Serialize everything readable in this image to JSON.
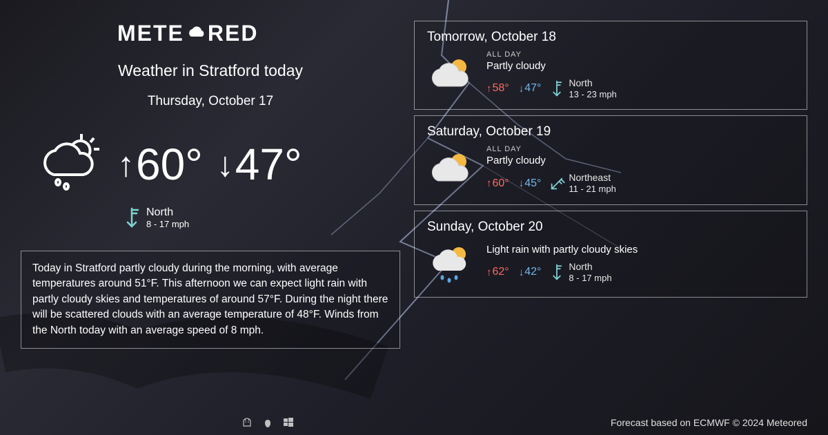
{
  "brand": {
    "name_a": "METE",
    "name_b": "RED"
  },
  "colors": {
    "text": "#ffffff",
    "hi": "#ff6b5a",
    "lo": "#6fb8e8",
    "wind_flag": "#7fd4d4",
    "border": "rgba(255,255,255,0.5)",
    "bg_start": "#1a1a1f",
    "bg_end": "#15151a"
  },
  "today": {
    "title": "Weather in Stratford today",
    "date": "Thursday, October 17",
    "icon": "cloud-sun-rain",
    "hi": "60°",
    "lo": "47°",
    "wind_dir": "North",
    "wind_speed": "8 - 17 mph",
    "wind_arrow_rotation": 180,
    "description": "Today in Stratford partly cloudy during the morning, with average temperatures around 51°F. This afternoon we can expect light rain with partly cloudy skies and temperatures of around 57°F. During the night there will be scattered clouds with an average temperature of 48°F. Winds from the North today with an average speed of 8 mph."
  },
  "forecast": [
    {
      "title": "Tomorrow, October 18",
      "allday_label": "ALL DAY",
      "condition": "Partly cloudy",
      "icon": "cloud-sun",
      "hi": "58°",
      "lo": "47°",
      "wind_dir": "North",
      "wind_speed": "13 - 23 mph",
      "wind_arrow_rotation": 180
    },
    {
      "title": "Saturday, October 19",
      "allday_label": "ALL DAY",
      "condition": "Partly cloudy",
      "icon": "cloud-sun",
      "hi": "60°",
      "lo": "45°",
      "wind_dir": "Northeast",
      "wind_speed": "11 - 21 mph",
      "wind_arrow_rotation": 225
    },
    {
      "title": "Sunday, October 20",
      "allday_label": "",
      "condition": "Light rain with partly cloudy skies",
      "icon": "cloud-sun-rain-color",
      "hi": "62°",
      "lo": "42°",
      "wind_dir": "North",
      "wind_speed": "8 - 17 mph",
      "wind_arrow_rotation": 180
    }
  ],
  "footer": {
    "text": "Forecast based on ECMWF © 2024 Meteored"
  }
}
